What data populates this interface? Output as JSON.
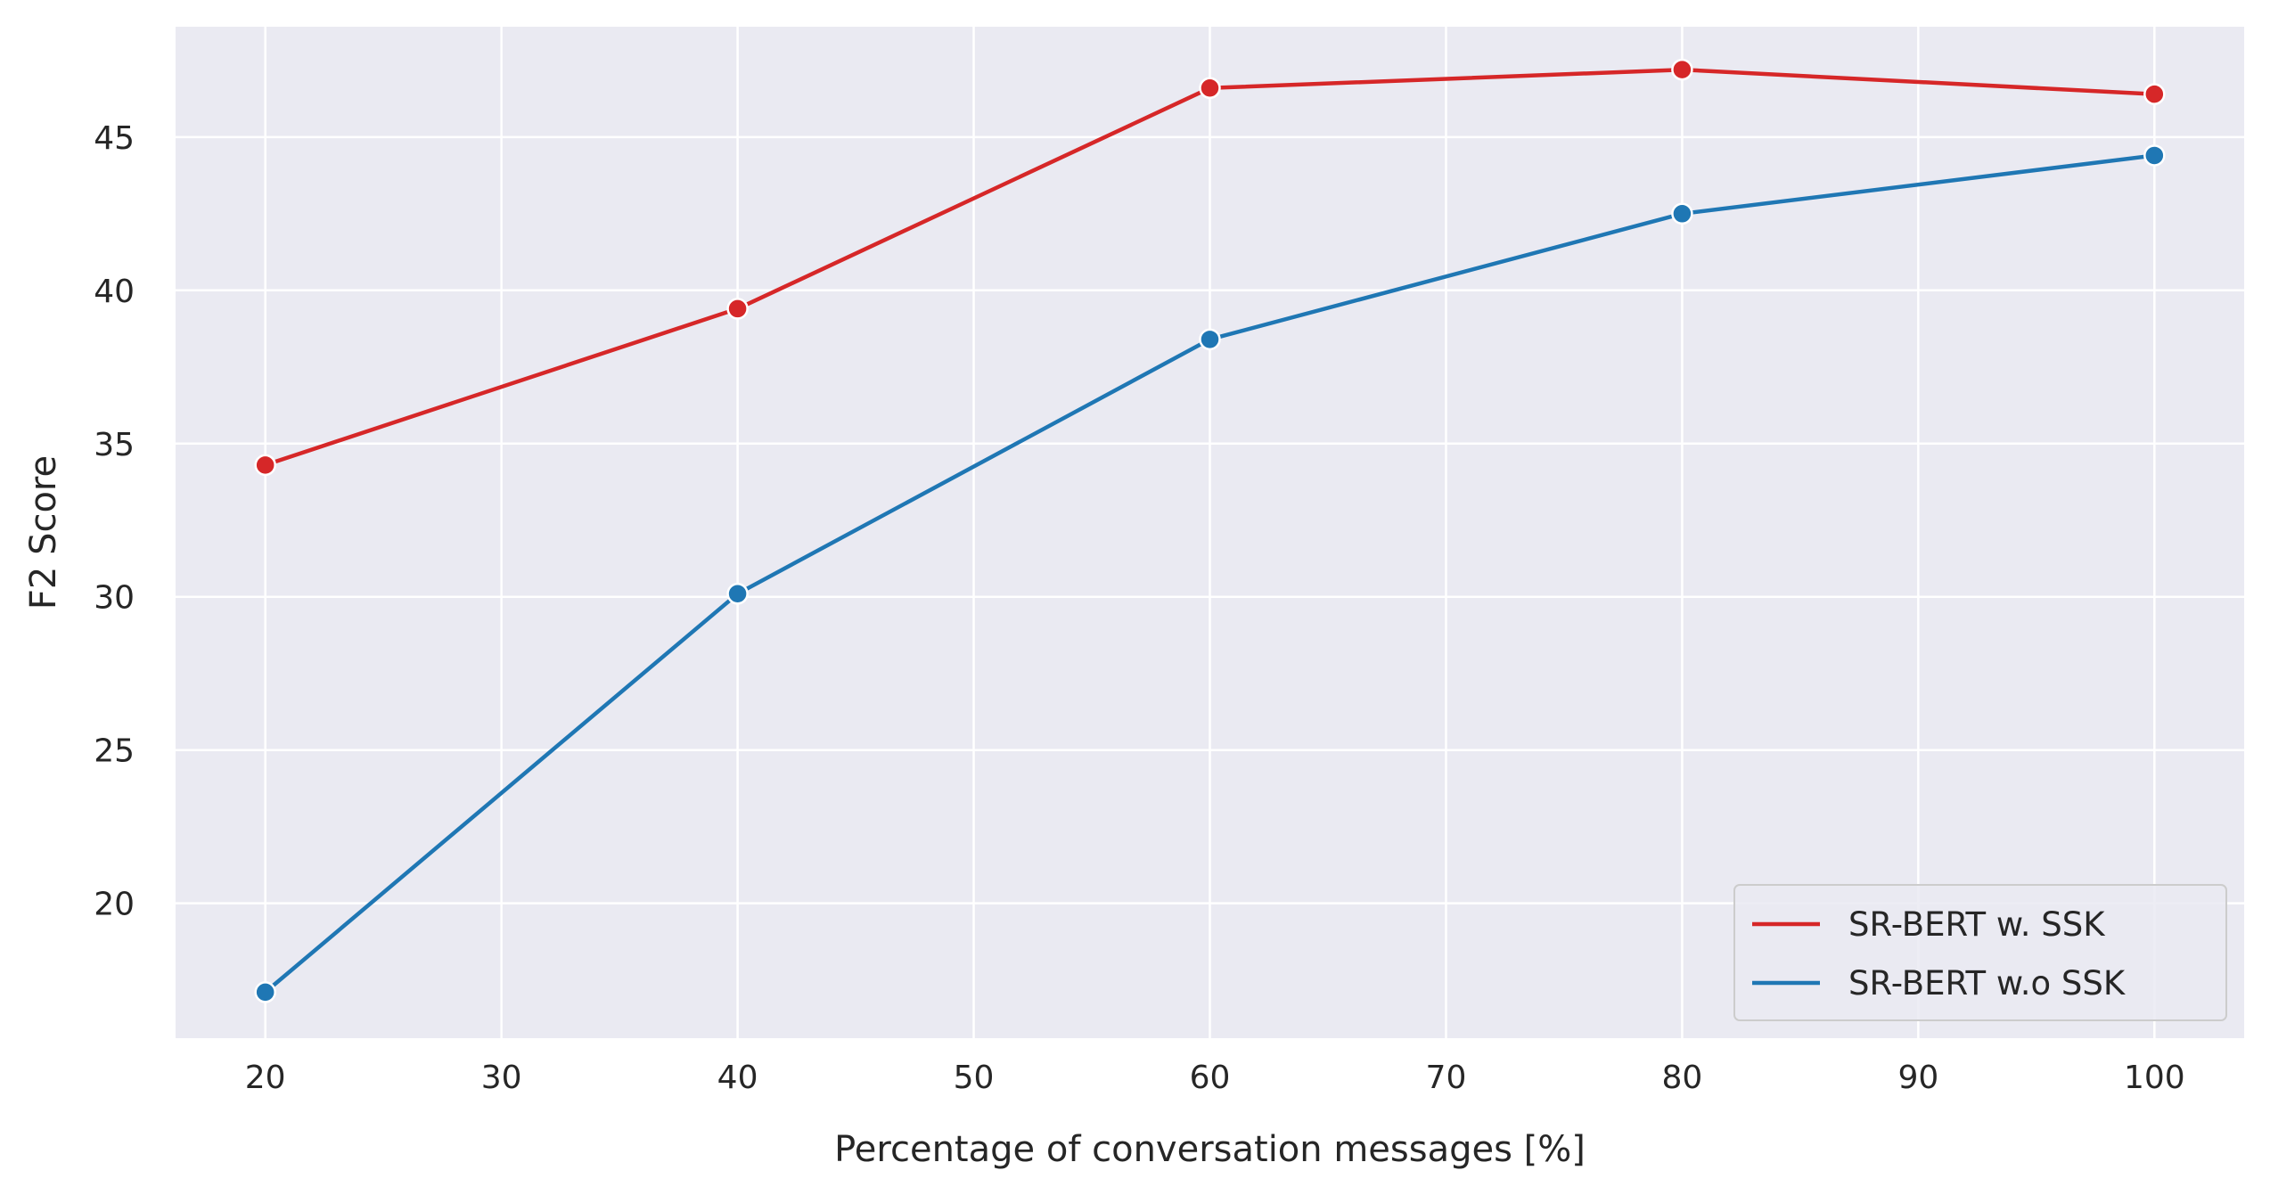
{
  "chart_data": {
    "type": "line",
    "title": "",
    "xlabel": "Percentage of conversation messages [%]",
    "ylabel": "F2 Score",
    "x": [
      20,
      40,
      60,
      80,
      100
    ],
    "xticks": [
      "20",
      "30",
      "40",
      "50",
      "60",
      "70",
      "80",
      "90",
      "100"
    ],
    "yticks": [
      "20",
      "25",
      "30",
      "35",
      "40",
      "45"
    ],
    "xlim": [
      16.2,
      103.8
    ],
    "ylim": [
      15.6,
      48.6
    ],
    "grid": true,
    "legend_position": "lower-right",
    "background": "#eaeaf2",
    "series": [
      {
        "name": "SR-BERT w. SSK",
        "color": "#d62728",
        "values": [
          34.3,
          39.4,
          46.6,
          47.2,
          46.4
        ]
      },
      {
        "name": "SR-BERT w.o SSK",
        "color": "#1f77b4",
        "values": [
          17.1,
          30.1,
          38.4,
          42.5,
          44.4
        ]
      }
    ]
  }
}
